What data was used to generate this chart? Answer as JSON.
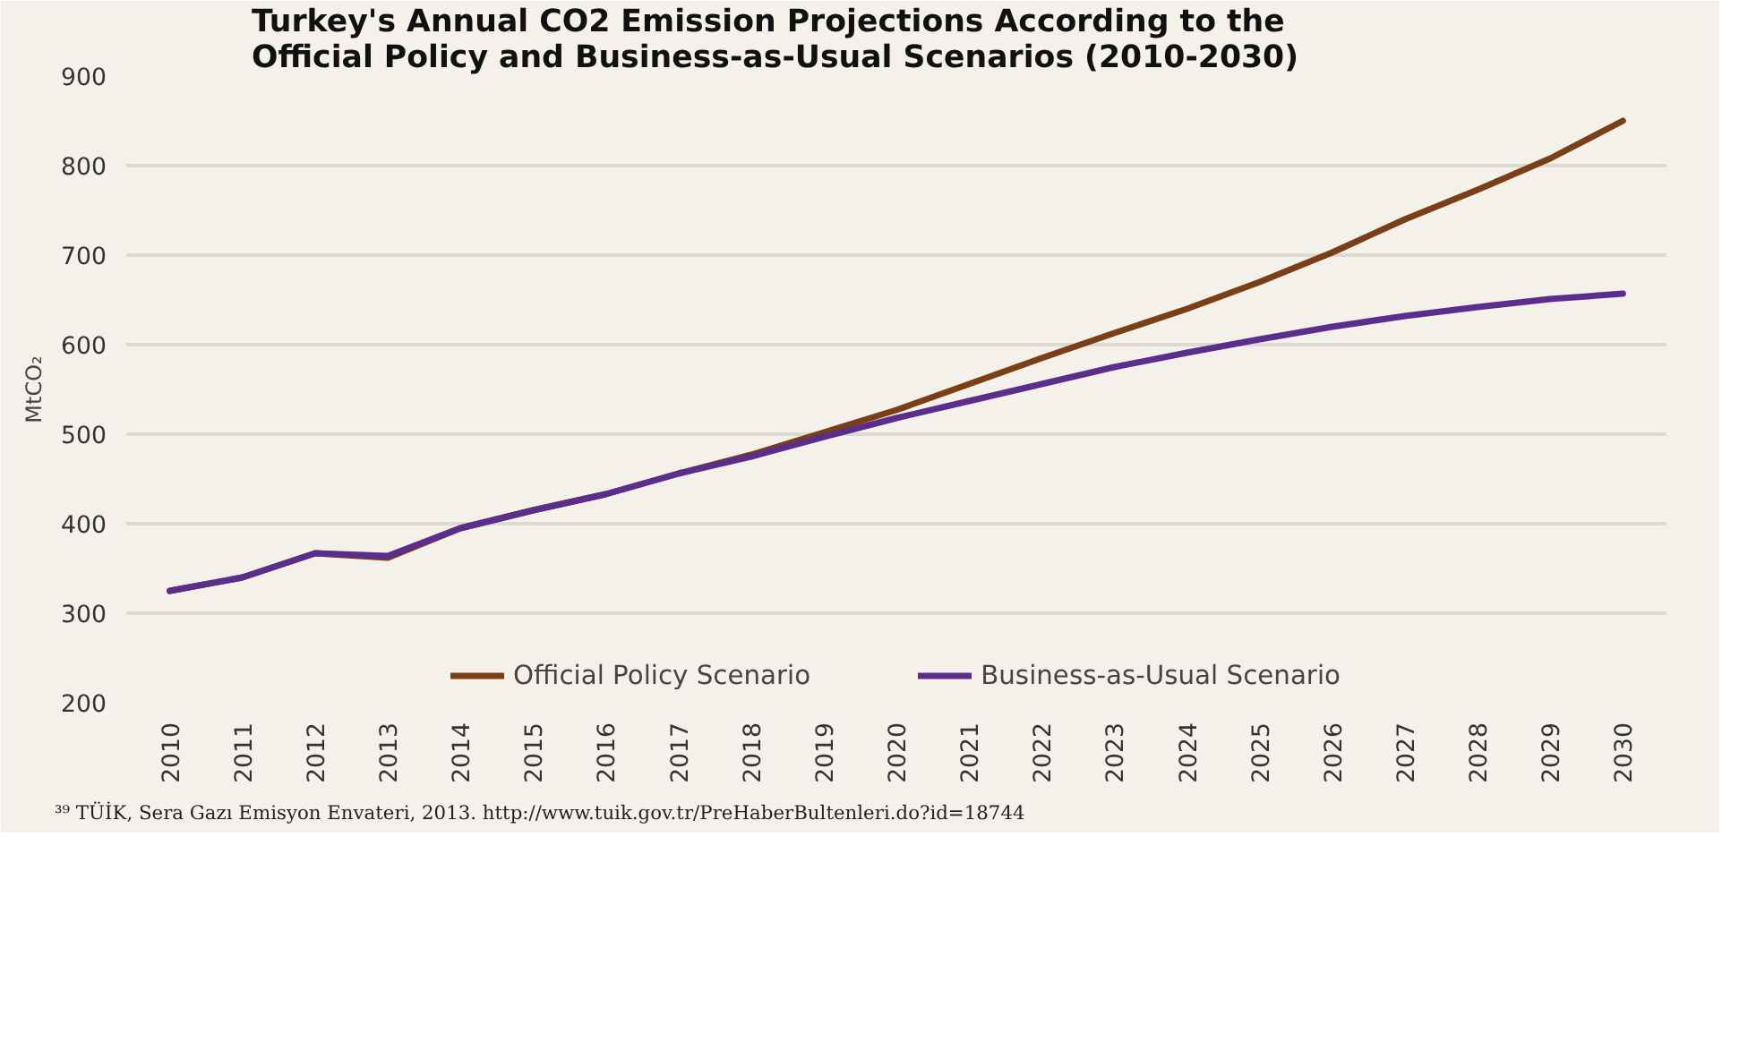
{
  "chart_data": {
    "type": "line",
    "title": "Turkey's Annual CO2 Emission Projections According to the Official Policy and Business-as-Usual Scenarios (2010-2030)",
    "ylabel": "MtCO₂",
    "categories": [
      "2010",
      "2011",
      "2012",
      "2013",
      "2014",
      "2015",
      "2016",
      "2017",
      "2018",
      "2019",
      "2020",
      "2021",
      "2022",
      "2023",
      "2024",
      "2025",
      "2026",
      "2027",
      "2028",
      "2029",
      "2030"
    ],
    "series": [
      {
        "name": "Official Policy Scenario",
        "color": "#7a3f14",
        "values": [
          325,
          340,
          367,
          362,
          395,
          415,
          433,
          456,
          477,
          502,
          527,
          556,
          585,
          613,
          640,
          670,
          703,
          740,
          773,
          808,
          850
        ]
      },
      {
        "name": "Business-as-Usual Scenario",
        "color": "#5b2d8c",
        "values": [
          325,
          340,
          367,
          364,
          395,
          415,
          433,
          456,
          475,
          497,
          518,
          537,
          556,
          575,
          591,
          606,
          620,
          632,
          642,
          651,
          657
        ]
      }
    ],
    "ylim": [
      200,
      900
    ],
    "yticks": [
      200,
      300,
      400,
      500,
      600,
      700,
      800,
      900
    ],
    "grid": "y",
    "legend": "bottom",
    "annotations": [
      "³⁹ TÜİK, Sera Gazı Emisyon Envateri, 2013. http://www.tuik.gov.tr/PreHaberBultenleri.do?id=18744"
    ]
  }
}
